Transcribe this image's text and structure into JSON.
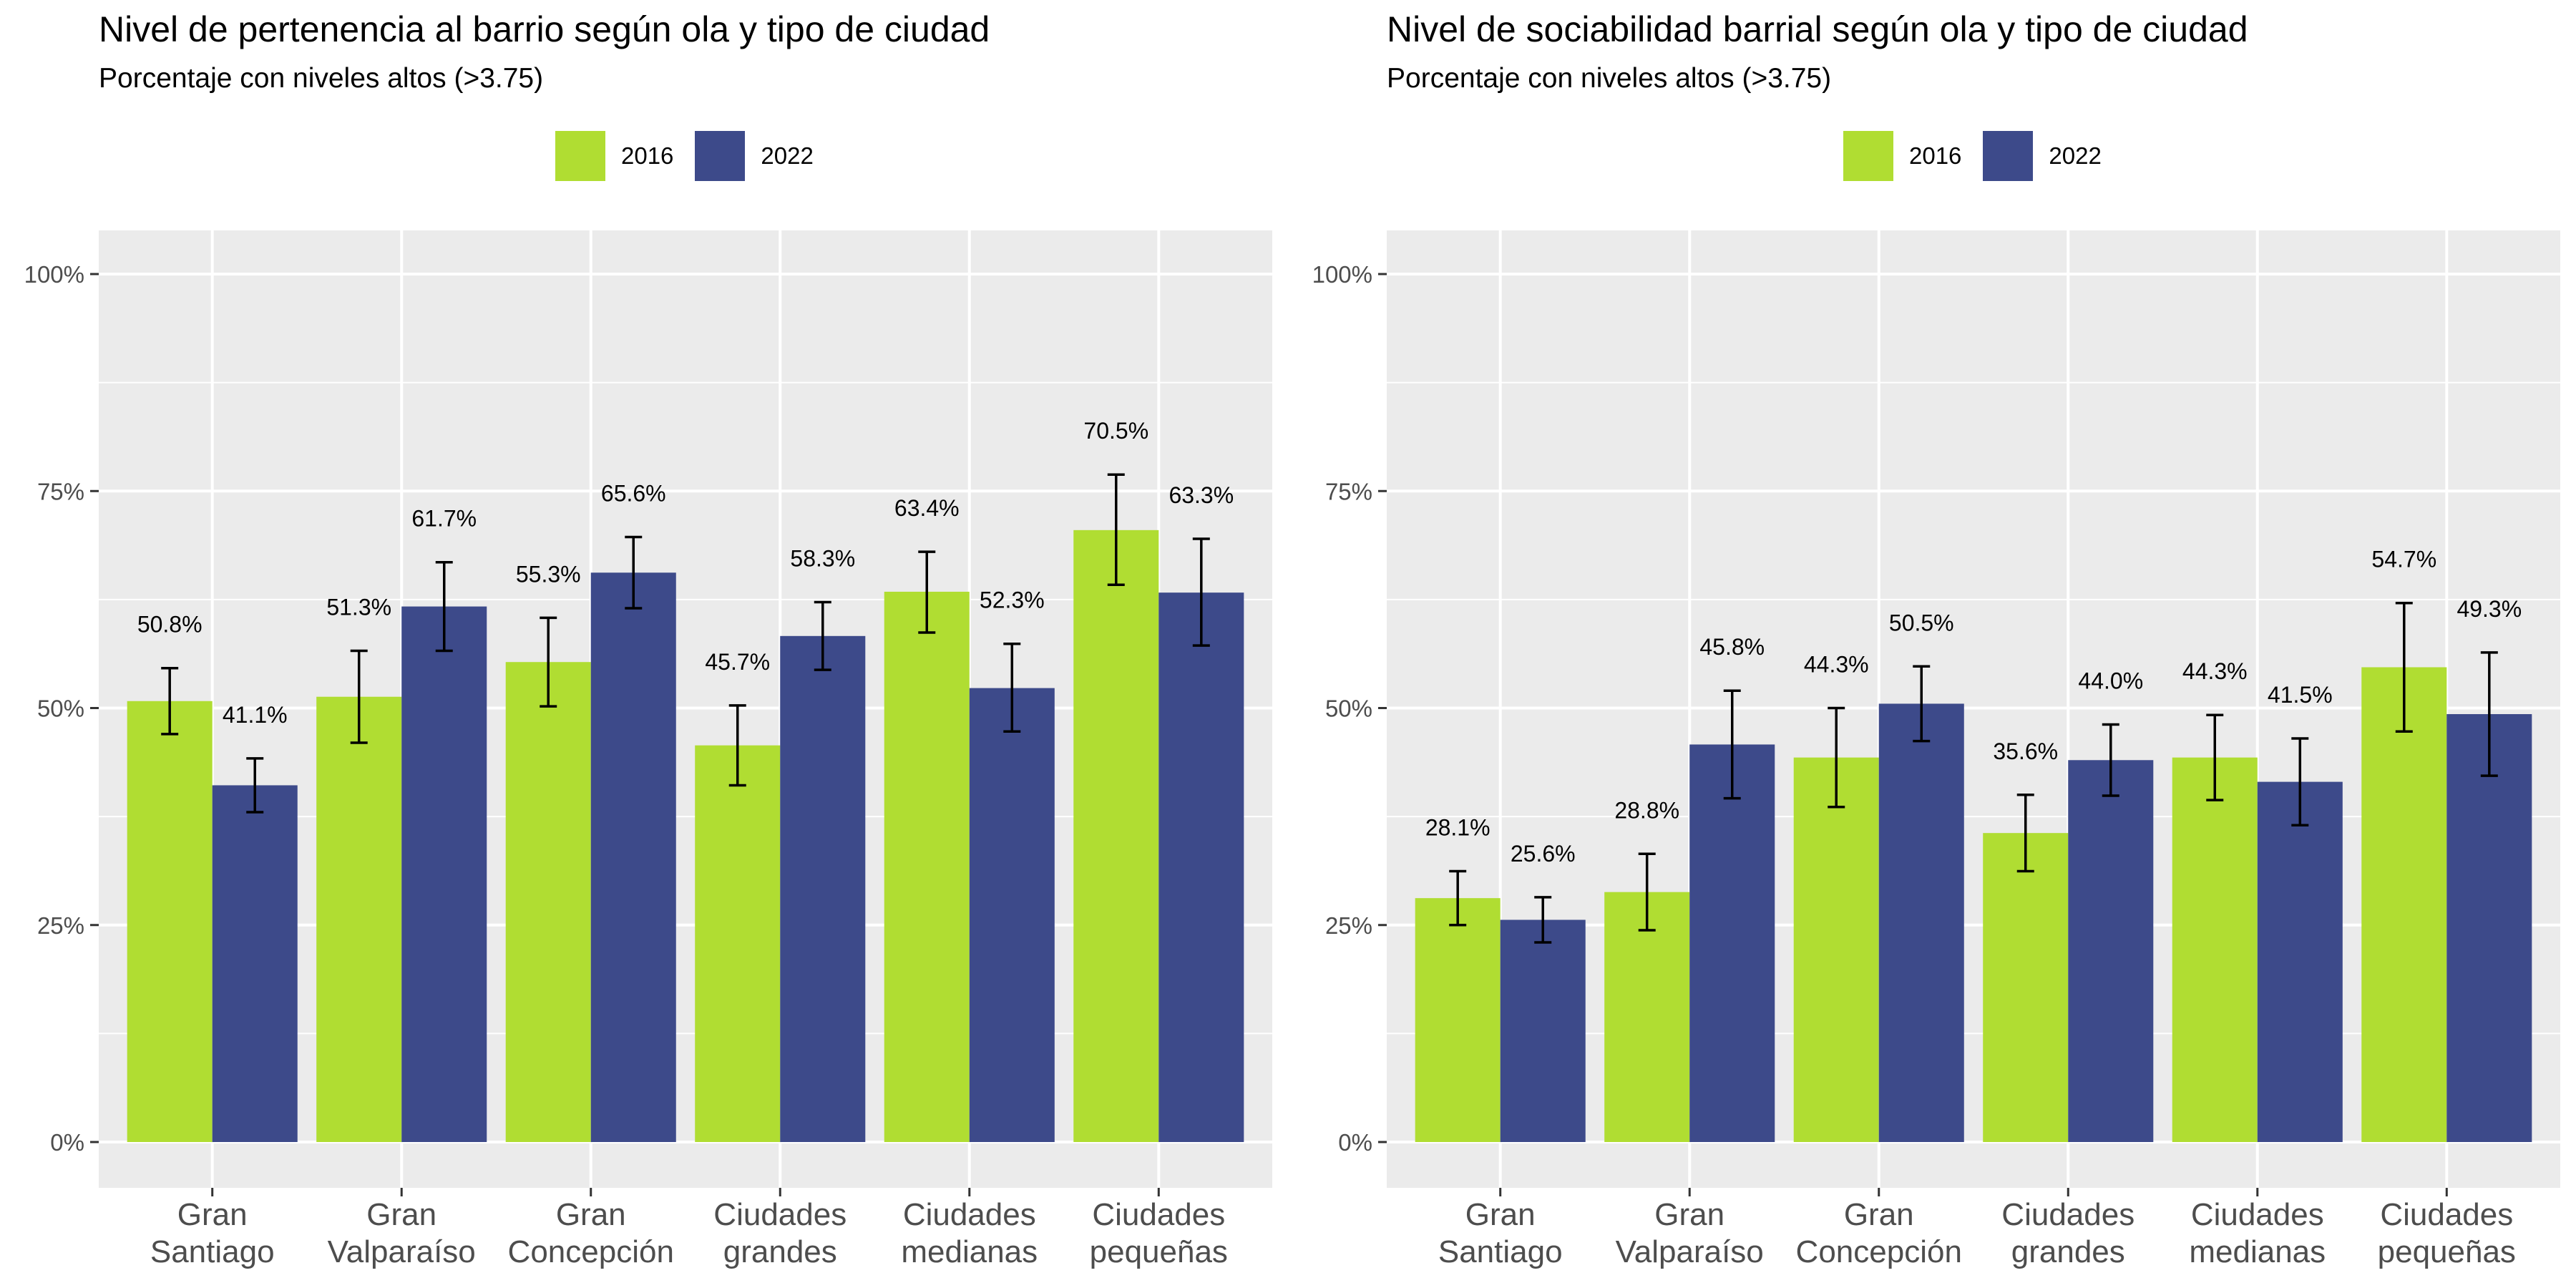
{
  "chart_data": [
    {
      "type": "bar",
      "title": "Nivel de pertenencia al barrio según ola y tipo de ciudad",
      "subtitle": "Porcentaje con niveles altos (>3.75)",
      "categories": [
        [
          "Gran",
          "Santiago"
        ],
        [
          "Gran",
          "Valparaíso"
        ],
        [
          "Gran",
          "Concepción"
        ],
        [
          "Ciudades",
          "grandes"
        ],
        [
          "Ciudades",
          "medianas"
        ],
        [
          "Ciudades",
          "pequeñas"
        ]
      ],
      "series": [
        {
          "name": "2016",
          "color": "#b0dd32",
          "values": [
            50.8,
            51.3,
            55.3,
            45.7,
            63.4,
            70.5
          ],
          "ci_low": [
            47.0,
            46.0,
            50.2,
            41.1,
            58.7,
            64.2
          ],
          "ci_high": [
            54.6,
            56.6,
            60.4,
            50.3,
            68.0,
            76.9
          ],
          "labels": [
            "50.8%",
            "51.3%",
            "55.3%",
            "45.7%",
            "63.4%",
            "70.5%"
          ]
        },
        {
          "name": "2022",
          "color": "#3d4a8a",
          "values": [
            41.1,
            61.7,
            65.6,
            58.3,
            52.3,
            63.3
          ],
          "ci_low": [
            38.0,
            56.6,
            61.5,
            54.4,
            47.3,
            57.2
          ],
          "ci_high": [
            44.2,
            66.8,
            69.7,
            62.2,
            57.4,
            69.5
          ],
          "labels": [
            "41.1%",
            "61.7%",
            "65.6%",
            "58.3%",
            "52.3%",
            "63.3%"
          ]
        }
      ],
      "ylim": [
        0,
        100
      ],
      "yticks": [
        0,
        25,
        50,
        75,
        100
      ],
      "ytick_labels": [
        "0%",
        "25%",
        "50%",
        "75%",
        "100%"
      ],
      "grid": true,
      "legend": "top"
    },
    {
      "type": "bar",
      "title": "Nivel de sociabilidad barrial según ola y tipo de ciudad",
      "subtitle": "Porcentaje con niveles altos (>3.75)",
      "categories": [
        [
          "Gran",
          "Santiago"
        ],
        [
          "Gran",
          "Valparaíso"
        ],
        [
          "Gran",
          "Concepción"
        ],
        [
          "Ciudades",
          "grandes"
        ],
        [
          "Ciudades",
          "medianas"
        ],
        [
          "Ciudades",
          "pequeñas"
        ]
      ],
      "series": [
        {
          "name": "2016",
          "color": "#b0dd32",
          "values": [
            28.1,
            28.8,
            44.3,
            35.6,
            44.3,
            54.7
          ],
          "ci_low": [
            25.0,
            24.4,
            38.6,
            31.2,
            39.4,
            47.3
          ],
          "ci_high": [
            31.2,
            33.2,
            50.0,
            40.0,
            49.2,
            62.1
          ],
          "labels": [
            "28.1%",
            "28.8%",
            "44.3%",
            "35.6%",
            "44.3%",
            "54.7%"
          ]
        },
        {
          "name": "2022",
          "color": "#3d4a8a",
          "values": [
            25.6,
            45.8,
            50.5,
            44.0,
            41.5,
            49.3
          ],
          "ci_low": [
            23.0,
            39.6,
            46.2,
            39.9,
            36.5,
            42.2
          ],
          "ci_high": [
            28.2,
            52.0,
            54.8,
            48.1,
            46.5,
            56.4
          ],
          "labels": [
            "25.6%",
            "45.8%",
            "50.5%",
            "44.0%",
            "41.5%",
            "49.3%"
          ]
        }
      ],
      "ylim": [
        0,
        100
      ],
      "yticks": [
        0,
        25,
        50,
        75,
        100
      ],
      "ytick_labels": [
        "0%",
        "25%",
        "50%",
        "75%",
        "100%"
      ],
      "grid": true,
      "legend": "top"
    }
  ]
}
